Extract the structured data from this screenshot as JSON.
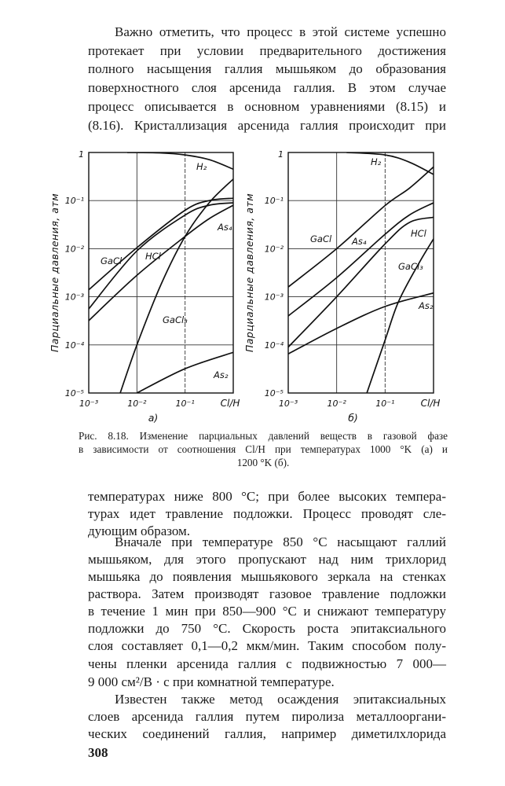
{
  "paragraph1": [
    "Важно отметить, что процесс в этой системе успешно",
    "протекает при условии предварительного достижения",
    "полного насыщения галлия мышьяком до образования",
    "поверхностного слоя арсенида галлия. В этом случае",
    "процесс описывается в основном уравнениями (8.15) и",
    "(8.16). Кристаллизация арсенида галлия происходит при"
  ],
  "caption": [
    "Рис. 8.18. Изменение парциальных давлений веществ в газовой фазе",
    "в зависимости от соотношения Cl/H при температурах 1000 °K (а) и",
    "1200 °K (б)."
  ],
  "paragraph2": [
    "температурах ниже 800 °С; при более высоких темпера-",
    "турах идет травление подложки. Процесс проводят сле-",
    "дующим образом."
  ],
  "paragraph3": [
    "Вначале при температуре 850 °С насыщают галлий",
    "мышьяком, для этого пропускают над ним трихлорид",
    "мышьяка до появления мышьякового зеркала на стенках",
    "раствора. Затем производят газовое травление подложки",
    "в течение 1 мин при 850—900 °С и снижают температуру",
    "подложки до 750 °С. Скорость роста эпитаксиального",
    "слоя составляет 0,1—0,2 мкм/мин. Таким способом полу-",
    "чены пленки арсенида галлия с подвижностью 7 000—",
    "9 000 см²/В · с при комнатной температуре."
  ],
  "paragraph4": [
    "Известен также метод осаждения эпитаксиальных",
    "слоев арсенида галлия путем пиролиза металлооргани-",
    "ческих соединений галлия, например диметилхлорида"
  ],
  "page_number": "308",
  "chart_data": [
    {
      "type": "line",
      "panel": "а)",
      "xlabel": "Cl/H",
      "ylabel": "Парциальные давления, атм",
      "xscale": "log",
      "yscale": "log",
      "xlim": [
        0.001,
        1
      ],
      "ylim": [
        1e-05,
        1
      ],
      "xticks": [
        "10⁻³",
        "10⁻²",
        "10⁻¹"
      ],
      "yticks": [
        "1",
        "10⁻¹",
        "10⁻²",
        "10⁻³",
        "10⁻⁴",
        "10⁻⁵"
      ],
      "grid": true,
      "series": [
        {
          "name": "H₂",
          "points": [
            [
              0.0063,
              1.0
            ],
            [
              0.03,
              0.98
            ],
            [
              0.1,
              0.89
            ],
            [
              0.316,
              0.71
            ],
            [
              1,
              0.45
            ]
          ]
        },
        {
          "name": "GaCl₃",
          "points": [
            [
              0.0045,
              1e-05
            ],
            [
              0.01,
              0.0001
            ],
            [
              0.0316,
              0.0018
            ],
            [
              0.1,
              0.018
            ],
            [
              0.316,
              0.09
            ],
            [
              1,
              0.28
            ]
          ]
        },
        {
          "name": "GaCl",
          "points": [
            [
              0.001,
              0.0014
            ],
            [
              0.01,
              0.0105
            ],
            [
              0.1,
              0.063
            ],
            [
              0.316,
              0.1
            ],
            [
              1,
              0.112
            ]
          ]
        },
        {
          "name": "HCl",
          "points": [
            [
              0.001,
              0.00056
            ],
            [
              0.01,
              0.009
            ],
            [
              0.1,
              0.05
            ],
            [
              0.316,
              0.08
            ],
            [
              1,
              0.09
            ]
          ]
        },
        {
          "name": "As₄",
          "points": [
            [
              0.001,
              0.00032
            ],
            [
              0.01,
              0.0028
            ],
            [
              0.1,
              0.018
            ],
            [
              0.316,
              0.042
            ],
            [
              1,
              0.08
            ]
          ]
        },
        {
          "name": "As₂",
          "points": [
            [
              0.01,
              1e-05
            ],
            [
              0.1,
              3.2e-05
            ],
            [
              1,
              7e-05
            ]
          ]
        }
      ]
    },
    {
      "type": "line",
      "panel": "б)",
      "xlabel": "Cl/H",
      "ylabel": "Парциальные давления, атм",
      "xscale": "log",
      "yscale": "log",
      "xlim": [
        0.001,
        1
      ],
      "ylim": [
        1e-05,
        1
      ],
      "xticks": [
        "10⁻³",
        "10⁻²",
        "10⁻¹"
      ],
      "yticks": [
        "1",
        "10⁻¹",
        "10⁻²",
        "10⁻³",
        "10⁻⁴",
        "10⁻⁵"
      ],
      "grid": true,
      "series": [
        {
          "name": "H₂",
          "points": [
            [
              0.016,
              1.0
            ],
            [
              0.1,
              0.89
            ],
            [
              0.316,
              0.63
            ],
            [
              1,
              0.35
            ]
          ]
        },
        {
          "name": "GaCl",
          "points": [
            [
              0.001,
              0.0016
            ],
            [
              0.01,
              0.01
            ],
            [
              0.1,
              0.079
            ],
            [
              0.316,
              0.18
            ],
            [
              1,
              0.5
            ]
          ]
        },
        {
          "name": "As₄",
          "points": [
            [
              0.001,
              0.0004
            ],
            [
              0.01,
              0.0025
            ],
            [
              0.1,
              0.02
            ],
            [
              0.316,
              0.05
            ],
            [
              1,
              0.09
            ]
          ]
        },
        {
          "name": "HCl",
          "points": [
            [
              0.001,
              9e-05
            ],
            [
              0.01,
              0.001
            ],
            [
              0.1,
              0.0126
            ],
            [
              0.316,
              0.035
            ],
            [
              1,
              0.045
            ]
          ]
        },
        {
          "name": "GaCl₃",
          "points": [
            [
              0.042,
              1e-05
            ],
            [
              0.1,
              0.000126
            ],
            [
              0.19,
              0.0008
            ],
            [
              0.5,
              0.005
            ],
            [
              1,
              0.016
            ]
          ]
        },
        {
          "name": "As₂",
          "points": [
            [
              0.001,
              6.5e-05
            ],
            [
              0.01,
              0.00022
            ],
            [
              0.1,
              0.00063
            ],
            [
              1,
              0.0012
            ]
          ]
        }
      ]
    }
  ]
}
